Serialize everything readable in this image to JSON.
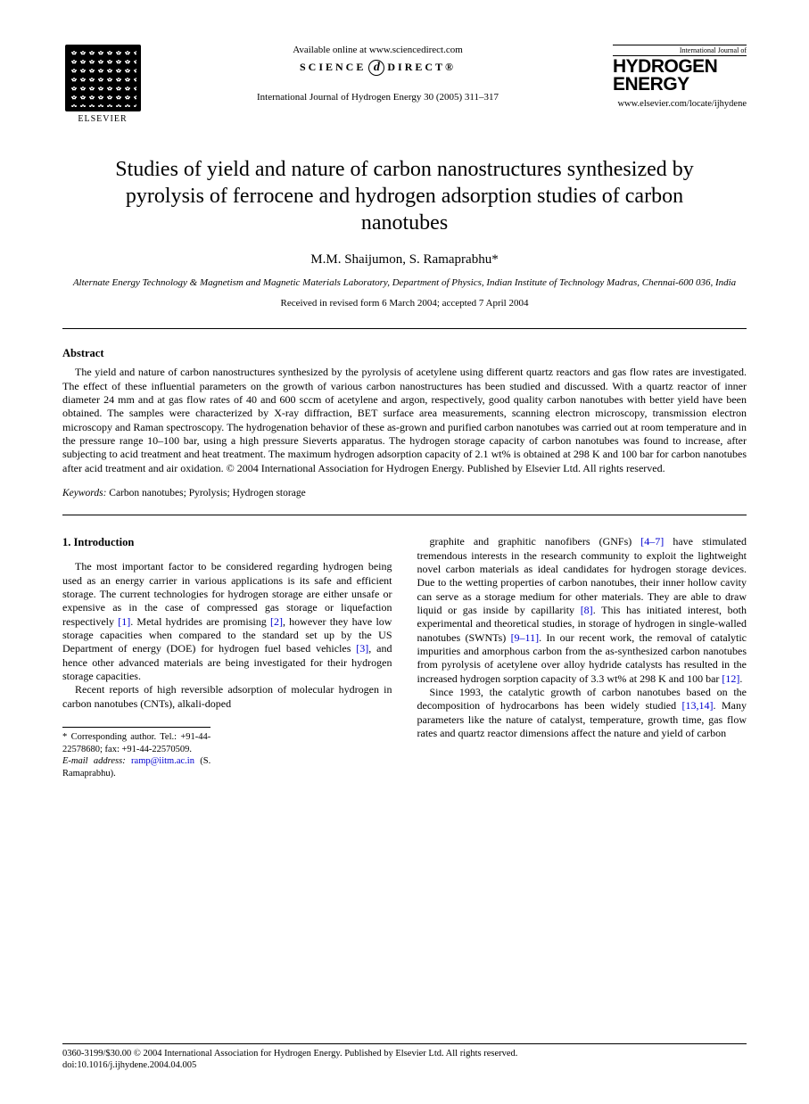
{
  "header": {
    "elsevier": "ELSEVIER",
    "available_online": "Available online at www.sciencedirect.com",
    "sd_left": "SCIENCE",
    "sd_icon": "d",
    "sd_right": "DIRECT®",
    "journal_ref": "International Journal of Hydrogen Energy 30 (2005) 311–317",
    "journal_logo_top": "International Journal of",
    "journal_logo_line1": "HYDROGEN",
    "journal_logo_line2": "ENERGY",
    "journal_url": "www.elsevier.com/locate/ijhydene"
  },
  "title": "Studies of yield and nature of carbon nanostructures synthesized by pyrolysis of ferrocene and hydrogen adsorption studies of carbon nanotubes",
  "authors": "M.M. Shaijumon, S. Ramaprabhu",
  "corr_marker": "*",
  "affiliation": "Alternate Energy Technology & Magnetism and Magnetic Materials Laboratory, Department of Physics, Indian Institute of Technology Madras, Chennai-600 036, India",
  "dates": "Received in revised form 6 March 2004; accepted 7 April 2004",
  "abstract": {
    "heading": "Abstract",
    "body": "The yield and nature of carbon nanostructures synthesized by the pyrolysis of acetylene using different quartz reactors and gas flow rates are investigated. The effect of these influential parameters on the growth of various carbon nanostructures has been studied and discussed. With a quartz reactor of inner diameter 24 mm and at gas flow rates of 40 and 600 sccm of acetylene and argon, respectively, good quality carbon nanotubes with better yield have been obtained. The samples were characterized by X-ray diffraction, BET surface area measurements, scanning electron microscopy, transmission electron microscopy and Raman spectroscopy. The hydrogenation behavior of these as-grown and purified carbon nanotubes was carried out at room temperature and in the pressure range 10–100 bar, using a high pressure Sieverts apparatus. The hydrogen storage capacity of carbon nanotubes was found to increase, after subjecting to acid treatment and heat treatment. The maximum hydrogen adsorption capacity of 2.1 wt% is obtained at 298 K and 100 bar for carbon nanotubes after acid treatment and air oxidation. © 2004 International Association for Hydrogen Energy. Published by Elsevier Ltd. All rights reserved."
  },
  "keywords": {
    "label": "Keywords:",
    "text": " Carbon nanotubes; Pyrolysis; Hydrogen storage"
  },
  "intro": {
    "heading": "1.  Introduction",
    "col1_p1a": "The most important factor to be considered regarding hydrogen being used as an energy carrier in various applications is its safe and efficient storage. The current technologies for hydrogen storage are either unsafe or expensive as in the case of compressed gas storage or liquefaction respectively ",
    "c1": "[1]",
    "col1_p1b": ". Metal hydrides are promising ",
    "c2": "[2]",
    "col1_p1c": ", however they have low storage capacities when compared to the standard set up by the US Department of energy (DOE) for hydrogen fuel based vehicles ",
    "c3": "[3]",
    "col1_p1d": ", and hence other advanced materials are being investigated for their hydrogen storage capacities.",
    "col1_p2": "Recent reports of high reversible adsorption of molecular hydrogen in carbon nanotubes (CNTs), alkali-doped",
    "col2_p1a": "graphite and graphitic nanofibers (GNFs) ",
    "c4": "[4–7]",
    "col2_p1b": " have stimulated tremendous interests in the research community to exploit the lightweight novel carbon materials as ideal candidates for hydrogen storage devices. Due to the wetting properties of carbon nanotubes, their inner hollow cavity can serve as a storage medium for other materials. They are able to draw liquid or gas inside by capillarity ",
    "c8": "[8]",
    "col2_p1c": ". This has initiated interest, both experimental and theoretical studies, in storage of hydrogen in single-walled nanotubes (SWNTs) ",
    "c9": "[9–11]",
    "col2_p1d": ". In our recent work, the removal of catalytic impurities and amorphous carbon from the as-synthesized carbon nanotubes from pyrolysis of acetylene over alloy hydride catalysts has resulted in the increased hydrogen sorption capacity of 3.3 wt% at 298 K and 100 bar ",
    "c12": "[12]",
    "col2_p1e": ".",
    "col2_p2a": "Since 1993, the catalytic growth of carbon nanotubes based on the decomposition of hydrocarbons has been widely studied ",
    "c13": "[13,14]",
    "col2_p2b": ". Many parameters like the nature of catalyst, temperature, growth time, gas flow rates and quartz reactor dimensions affect the nature and yield of carbon"
  },
  "footnote": {
    "corr": "Corresponding author. Tel.: +91-44-22578680; fax: +91-44-22570509.",
    "email_label": "E-mail address:",
    "email": "ramp@iitm.ac.in",
    "email_who": " (S. Ramaprabhu)."
  },
  "footer": {
    "line1": "0360-3199/$30.00 © 2004 International Association for Hydrogen Energy. Published by Elsevier Ltd. All rights reserved.",
    "line2": "doi:10.1016/j.ijhydene.2004.04.005"
  },
  "colors": {
    "citation": "#0000d0",
    "text": "#000000",
    "background": "#ffffff"
  }
}
